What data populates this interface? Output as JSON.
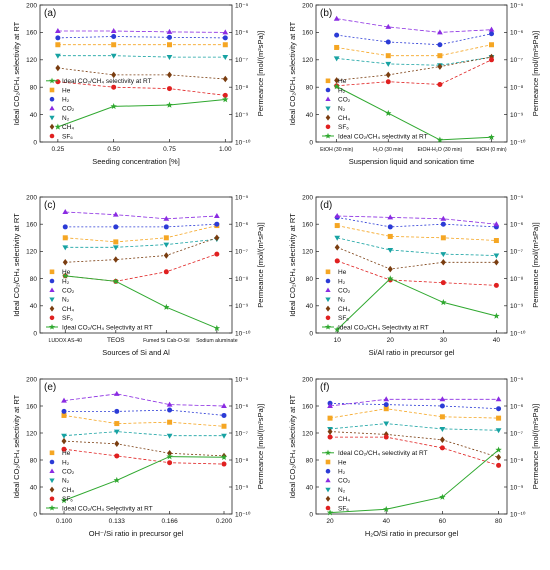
{
  "figure": {
    "caption": ""
  },
  "shared": {
    "ylabel_left": "Ideal CO₂/CH₄ selectivity at RT",
    "ylabel_right": "Permeance [mol/(m²sPa)]",
    "left_ylim": [
      0,
      200
    ],
    "left_yticks": [
      0,
      40,
      80,
      120,
      160,
      200
    ],
    "right_ylim_exp": [
      -10,
      -5
    ],
    "right_tick_labels": [
      "10⁻¹⁰",
      "10⁻⁹",
      "10⁻⁸",
      "10⁻⁷",
      "10⁻⁶",
      "10⁻⁵"
    ]
  },
  "series_styles": [
    {
      "name": "He",
      "color": "#f5a623",
      "marker": "square"
    },
    {
      "name": "H₂",
      "color": "#2b3bd6",
      "marker": "circle"
    },
    {
      "name": "CO₂",
      "color": "#8a2be2",
      "marker": "triangle-up"
    },
    {
      "name": "N₂",
      "color": "#17a2a2",
      "marker": "triangle-down"
    },
    {
      "name": "CH₄",
      "color": "#7a3d10",
      "marker": "diamond"
    },
    {
      "name": "SF₆",
      "color": "#e02020",
      "marker": "circle"
    },
    {
      "name": "selectivity",
      "color": "#2fa82f",
      "marker": "star"
    }
  ],
  "chart_data": [
    {
      "type": "line",
      "panel": "(a)",
      "xlabel": "Seeding concentration [%]",
      "x": [
        0.25,
        0.5,
        0.75,
        1.0
      ],
      "xlim": [
        0.17,
        1.03
      ],
      "xtick_labels": [
        "0.25",
        "0.50",
        "0.75",
        "1.00"
      ],
      "legend_position": "bottom-left",
      "legend_order": [
        "selectivity",
        "He",
        "H₂",
        "CO₂",
        "N₂",
        "CH₄",
        "SF₆"
      ],
      "selectivity_label": "Ideal CO₂/CH₄ selectivity at RT",
      "selectivity": [
        22,
        52,
        54,
        62
      ],
      "permeance_exp": {
        "He": [
          -6.45,
          -6.45,
          -6.45,
          -6.45
        ],
        "H₂": [
          -6.2,
          -6.15,
          -6.18,
          -6.2
        ],
        "CO₂": [
          -5.95,
          -5.95,
          -5.98,
          -6.0
        ],
        "N₂": [
          -6.85,
          -6.85,
          -6.9,
          -6.9
        ],
        "CH₄": [
          -7.3,
          -7.55,
          -7.55,
          -7.7
        ],
        "SF₆": [
          -7.8,
          -8.0,
          -8.05,
          -8.3
        ]
      }
    },
    {
      "type": "line",
      "panel": "(b)",
      "xlabel": "Suspension liquid and sonication time",
      "x": [
        0,
        1,
        2,
        3
      ],
      "xlim": [
        -0.4,
        3.3
      ],
      "xtick_labels": [
        "EtOH (30 min)",
        "H₂O (30 min)",
        "EtOH-H₂O (30 min)",
        "EtOH (0 min)"
      ],
      "legend_position": "bottom-left",
      "legend_order": [
        "He",
        "H₂",
        "CO₂",
        "N₂",
        "CH₄",
        "SF₆",
        "selectivity"
      ],
      "selectivity_label": "Ideal CO₂/CH₄ selectivity at RT",
      "selectivity": [
        81,
        42,
        3,
        7
      ],
      "permeance_exp": {
        "He": [
          -6.55,
          -6.85,
          -6.85,
          -6.45
        ],
        "H₂": [
          -6.1,
          -6.35,
          -6.45,
          -6.05
        ],
        "CO₂": [
          -5.5,
          -5.8,
          -6.0,
          -5.9
        ],
        "N₂": [
          -6.95,
          -7.15,
          -7.2,
          -6.9
        ],
        "CH₄": [
          -7.75,
          -7.55,
          -7.25,
          -6.9
        ],
        "SF₆": [
          -7.95,
          -7.8,
          -7.9,
          -7.0
        ]
      }
    },
    {
      "type": "line",
      "panel": "(c)",
      "xlabel": "Sources of Si and Al",
      "x": [
        0,
        1,
        2,
        3
      ],
      "xlim": [
        -0.5,
        3.3
      ],
      "xtick_labels": [
        "LUDOX AS-40",
        "TEOS",
        "Fumed Si Cab-O-Sil",
        "Sodium aluminate"
      ],
      "legend_position": "bottom-left",
      "legend_order": [
        "He",
        "H₂",
        "CO₂",
        "N₂",
        "CH₄",
        "SF₆",
        "selectivity"
      ],
      "selectivity_label": "Ideal CO₂/CH₄ Selectivity at RT",
      "selectivity": [
        84,
        76,
        38,
        7
      ],
      "permeance_exp": {
        "He": [
          -6.5,
          -6.65,
          -6.5,
          -6.05
        ],
        "H₂": [
          -6.1,
          -6.1,
          -6.1,
          -6.0
        ],
        "CO₂": [
          -5.55,
          -5.65,
          -5.8,
          -5.7
        ],
        "N₂": [
          -6.85,
          -6.85,
          -6.75,
          -6.55
        ],
        "CH₄": [
          -7.4,
          -7.3,
          -7.15,
          -6.5
        ],
        "SF₆": [
          -7.9,
          -8.1,
          -7.75,
          -7.1
        ]
      }
    },
    {
      "type": "line",
      "panel": "(d)",
      "xlabel": "Si/Al ratio in precursor gel",
      "x": [
        10,
        20,
        30,
        40
      ],
      "xlim": [
        6,
        42
      ],
      "xtick_labels": [
        "10",
        "20",
        "30",
        "40"
      ],
      "legend_position": "bottom-left",
      "legend_order": [
        "He",
        "H₂",
        "CO₂",
        "N₂",
        "CH₄",
        "SF₆",
        "selectivity"
      ],
      "selectivity_label": "Ideal CO₂/CH₄ Selectivity at RT",
      "selectivity": [
        5,
        80,
        45,
        25
      ],
      "permeance_exp": {
        "He": [
          -6.05,
          -6.45,
          -6.5,
          -6.6
        ],
        "H₂": [
          -5.75,
          -6.1,
          -6.0,
          -6.1
        ],
        "CO₂": [
          -5.7,
          -5.75,
          -5.8,
          -6.0
        ],
        "N₂": [
          -6.5,
          -6.95,
          -7.1,
          -7.15
        ],
        "CH₄": [
          -6.85,
          -7.65,
          -7.4,
          -7.4
        ],
        "SF₆": [
          -7.35,
          -8.05,
          -8.15,
          -8.25
        ]
      }
    },
    {
      "type": "line",
      "panel": "(e)",
      "xlabel": "OH⁻/Si ratio in precursor gel",
      "x": [
        0.1,
        0.133,
        0.166,
        0.2
      ],
      "xlim": [
        0.085,
        0.205
      ],
      "xtick_labels": [
        "0.100",
        "0.133",
        "0.166",
        "0.200"
      ],
      "legend_position": "bottom-left",
      "legend_order": [
        "He",
        "H₂",
        "CO₂",
        "N₂",
        "CH₄",
        "SF₆",
        "selectivity"
      ],
      "selectivity_label": "Ideal CO₂/CH₄ Selectivity at RT",
      "selectivity": [
        20,
        50,
        85,
        84
      ],
      "permeance_exp": {
        "He": [
          -6.35,
          -6.65,
          -6.6,
          -6.75
        ],
        "H₂": [
          -6.2,
          -6.2,
          -6.15,
          -6.35
        ],
        "CO₂": [
          -5.8,
          -5.55,
          -5.95,
          -6.0
        ],
        "N₂": [
          -7.1,
          -6.95,
          -7.1,
          -7.1
        ],
        "CH₄": [
          -7.3,
          -7.4,
          -7.75,
          -7.85
        ],
        "SF₆": [
          -7.6,
          -7.85,
          -8.1,
          -8.15
        ]
      }
    },
    {
      "type": "line",
      "panel": "(f)",
      "xlabel": "H₂O/Si ratio in precursor gel",
      "x": [
        20,
        40,
        60,
        80
      ],
      "xlim": [
        15,
        83
      ],
      "xtick_labels": [
        "20",
        "40",
        "60",
        "80"
      ],
      "legend_position": "bottom-left",
      "legend_order": [
        "selectivity",
        "He",
        "H₂",
        "CO₂",
        "N₂",
        "CH₄",
        "SF₆"
      ],
      "selectivity_label": "Ideal CO₂/CH₄ selectivity at RT",
      "selectivity": [
        2,
        7,
        25,
        95
      ],
      "permeance_exp": {
        "He": [
          -6.45,
          -6.1,
          -6.4,
          -6.45
        ],
        "H₂": [
          -5.9,
          -5.95,
          -6.0,
          -6.1
        ],
        "CO₂": [
          -6.0,
          -5.75,
          -5.75,
          -5.75
        ],
        "N₂": [
          -6.85,
          -6.65,
          -6.85,
          -6.9
        ],
        "CH₄": [
          -6.95,
          -7.05,
          -7.25,
          -7.9
        ],
        "SF₆": [
          -7.15,
          -7.15,
          -7.55,
          -8.2
        ]
      }
    }
  ]
}
